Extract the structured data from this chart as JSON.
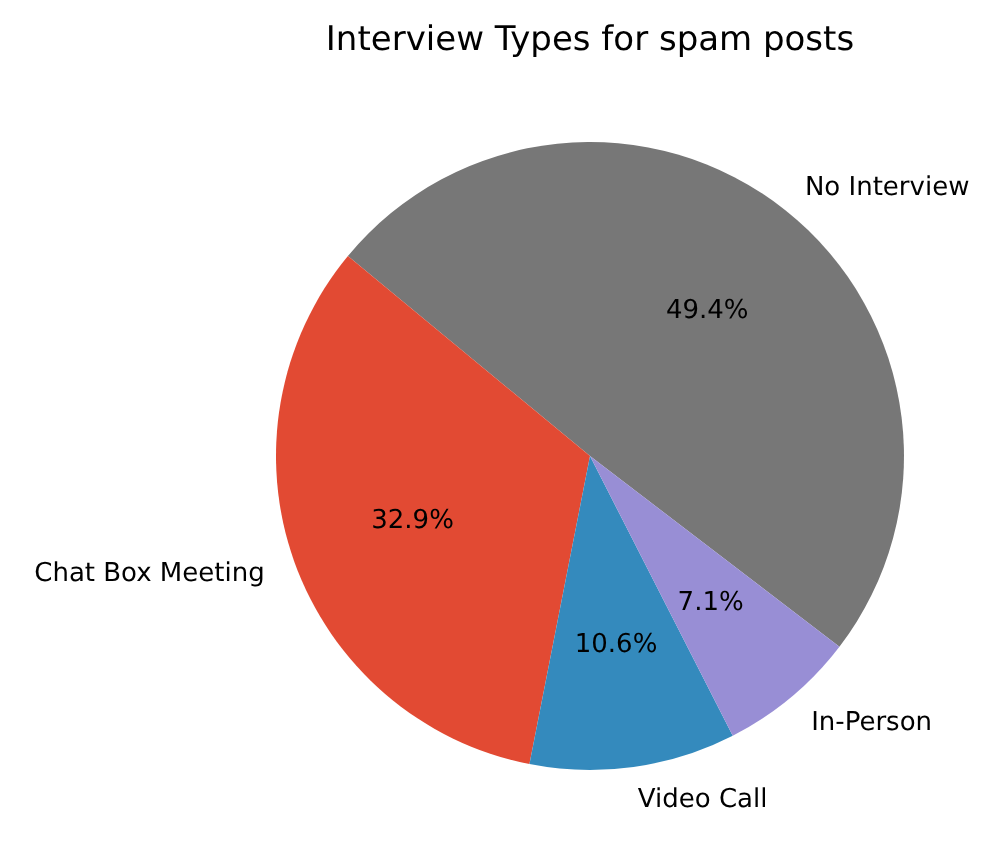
{
  "chart_data": {
    "type": "pie",
    "title": "Interview Types for spam posts",
    "categories": [
      "No Interview",
      "Chat Box Meeting",
      "Video Call",
      "In-Person"
    ],
    "values": [
      49.4,
      32.9,
      10.6,
      7.1
    ],
    "colors": [
      "#777777",
      "#e24a33",
      "#348abd",
      "#988ed5"
    ],
    "value_labels": [
      "49.4%",
      "32.9%",
      "10.6%",
      "7.1%"
    ]
  }
}
